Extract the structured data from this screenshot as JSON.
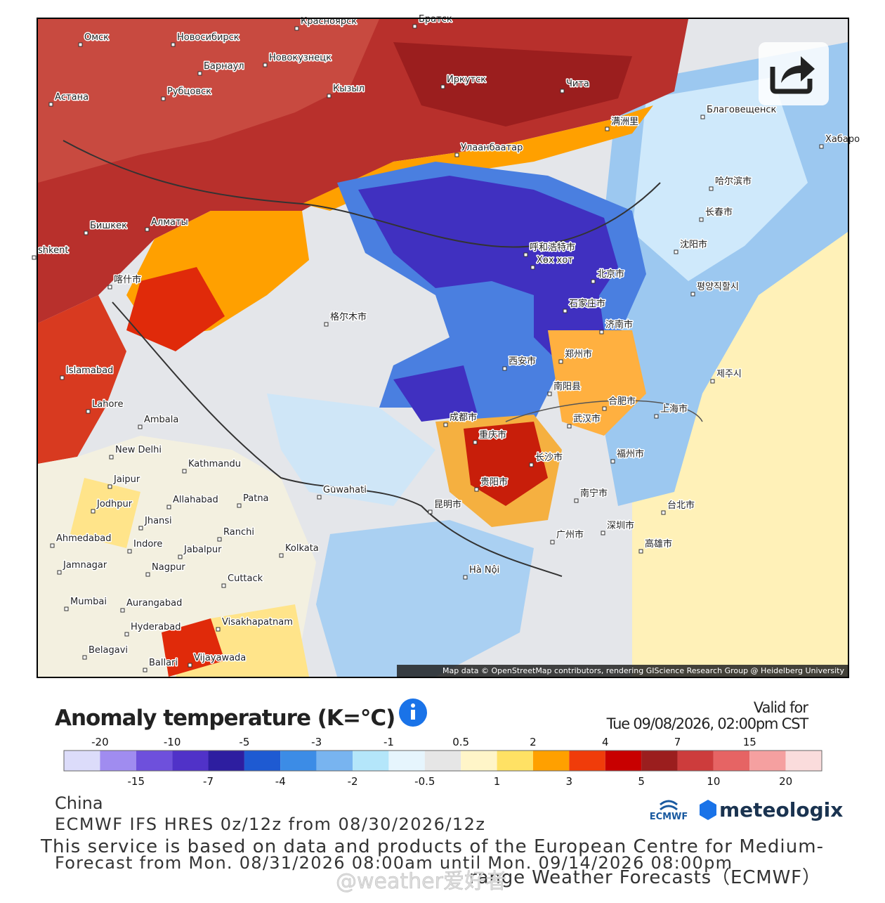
{
  "map": {
    "cities": [
      "Омск",
      "Новосибирск",
      "Красноярск",
      "Братск",
      "Барнаул",
      "Новокузнецк",
      "Рубцовск",
      "Астана",
      "Кызыл",
      "Иркутск",
      "Чита",
      "满洲里",
      "Благовещенск",
      "Хабаро",
      "Улаанбаатар",
      "Бишкек",
      "Алматы",
      "shkent",
      "喀什市",
      "哈尔滨市",
      "长春市",
      "沈阳市",
      "呼和浩特市",
      "Хөх хот",
      "北京市",
      "石家庄市",
      "평양직할시",
      "济南市",
      "西安市",
      "郑州市",
      "格尔木市",
      "Islamabad",
      "Lahore",
      "Ambala",
      "New Delhi",
      "Kathmandu",
      "Jaipur",
      "Jodhpur",
      "Allahabad",
      "Patna",
      "Guwahati",
      "Ahmedabad",
      "Indore",
      "Jabalpur",
      "Jhansi",
      "Ranchi",
      "Kolkata",
      "Jamnagar",
      "Nagpur",
      "Cuttack",
      "Mumbai",
      "Aurangabad",
      "Hyderabad",
      "Visakhapatnam",
      "Belagavi",
      "Ballari",
      "Vijayawada",
      "成都市",
      "重庆市",
      "武汉市",
      "合肥市",
      "上海市",
      "长沙市",
      "贵阳市",
      "昆明市",
      "福州市",
      "台北市",
      "南宁市",
      "广州市",
      "深圳市",
      "高雄市",
      "Hà Nội",
      "제주시",
      "南阳县"
    ],
    "attribution": "Map data © OpenStreetMap contributors, rendering GIScience Research Group @ Heidelberg University"
  },
  "legend": {
    "title": "Anomaly temperature (K=°C)",
    "valid_label": "Valid for",
    "valid_time": "Tue 09/08/2026, 02:00pm CST",
    "boundaries": [
      -20,
      -15,
      -10,
      -7,
      -5,
      -4,
      -3,
      -2,
      -1,
      -0.5,
      0.5,
      1,
      2,
      3,
      4,
      5,
      7,
      10,
      15,
      20
    ],
    "colors": [
      "#dcdcfa",
      "#a08cf0",
      "#6e50dc",
      "#5032c8",
      "#2d1ea0",
      "#1e5ad2",
      "#3c8ce6",
      "#78b4f0",
      "#b4e6fa",
      "#e6f5fd",
      "#e6e6e6",
      "#fff5c8",
      "#ffe164",
      "#ffa000",
      "#f03c0a",
      "#c80000",
      "#9b1e1e",
      "#cd3c3c",
      "#e66464",
      "#f5a0a0",
      "#fadcdc"
    ]
  },
  "footer": {
    "region": "China",
    "model": "ECMWF IFS HRES 0z/12z from 08/30/2026/12z",
    "forecast_range": "Forecast from Mon. 08/31/2026 08:00am until Mon. 09/14/2026 08:00pm",
    "disclaimer_1": "This service is based on data and products of the European Centre for Medium-",
    "disclaimer_2": "range Weather Forecasts（ECMWF）",
    "ecmwf_logo": "ECMWF",
    "brand": "meteologix",
    "watermark": "@weather爱好者"
  }
}
